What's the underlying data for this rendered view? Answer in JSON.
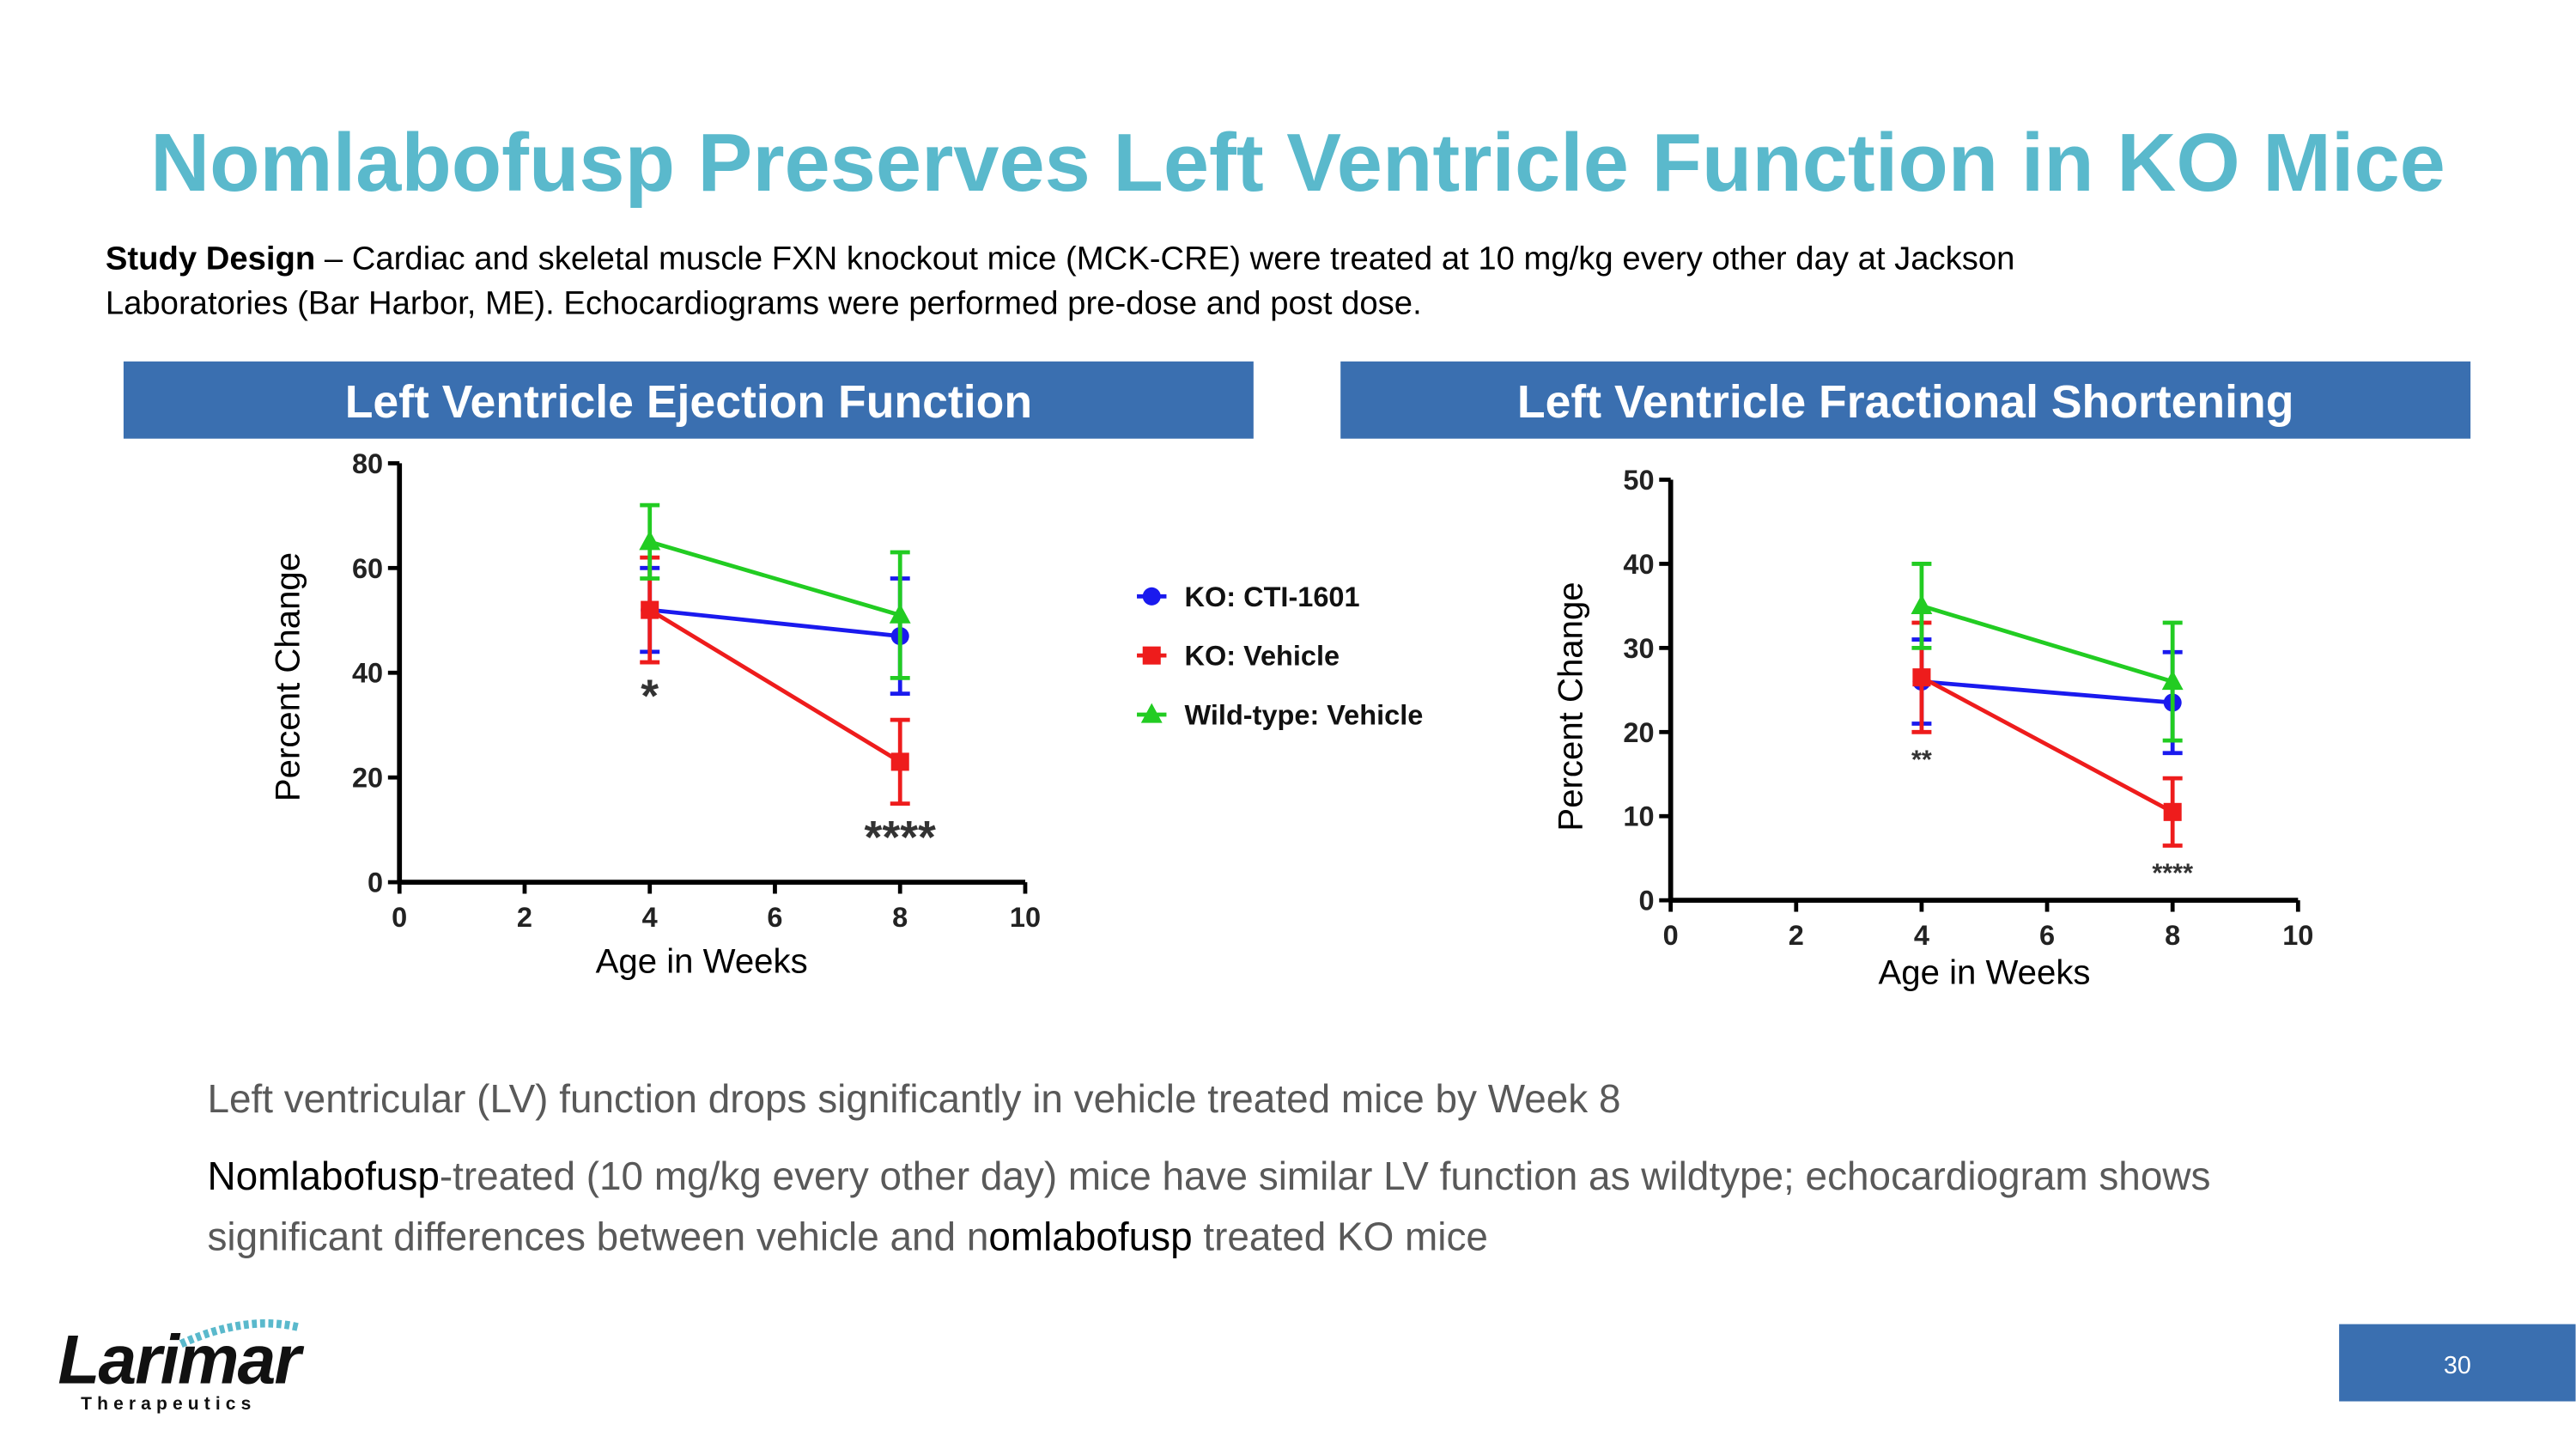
{
  "header": {
    "title": "Nomlabofusp Preserves Left Ventricle Function in KO Mice"
  },
  "study_design": {
    "label": "Study Design",
    "lines": [
      " – Cardiac and skeletal muscle FXN knockout mice (MCK-CRE) were treated at 10 mg/kg every other day at Jackson",
      "Laboratories (Bar Harbor, ME). Echocardiograms were performed pre-dose and post dose."
    ]
  },
  "chart_data": [
    {
      "type": "line",
      "title": "Left Ventricle Ejection Function",
      "xlabel": "Age in Weeks",
      "ylabel": "Percent Change",
      "x": [
        4,
        8
      ],
      "xlim": [
        0,
        10
      ],
      "xticks": [
        0,
        2,
        4,
        6,
        8,
        10
      ],
      "ylim": [
        0,
        80
      ],
      "yticks": [
        0,
        20,
        40,
        60,
        80
      ],
      "series": [
        {
          "name": "KO: CTI-1601",
          "color": "#1a1aee",
          "marker": "circle",
          "values": [
            52,
            47
          ],
          "errors": [
            8,
            11
          ]
        },
        {
          "name": "KO: Vehicle",
          "color": "#ee1c1c",
          "marker": "square",
          "values": [
            52,
            23
          ],
          "errors": [
            10,
            8
          ]
        },
        {
          "name": "Wild-type: Vehicle",
          "color": "#22cc22",
          "marker": "triangle",
          "values": [
            65,
            51
          ],
          "errors": [
            7,
            12
          ]
        }
      ],
      "annotations": [
        {
          "text": "*",
          "x": 4
        },
        {
          "text": "****",
          "x": 8
        }
      ]
    },
    {
      "type": "line",
      "title": "Left Ventricle Fractional Shortening",
      "xlabel": "Age in Weeks",
      "ylabel": "Percent Change",
      "x": [
        4,
        8
      ],
      "xlim": [
        0,
        10
      ],
      "xticks": [
        0,
        2,
        4,
        6,
        8,
        10
      ],
      "ylim": [
        0,
        50
      ],
      "yticks": [
        0,
        10,
        20,
        30,
        40,
        50
      ],
      "series": [
        {
          "color": "#1a1aee",
          "marker": "circle",
          "values": [
            26,
            23.5
          ],
          "errors": [
            5,
            6
          ]
        },
        {
          "color": "#ee1c1c",
          "marker": "square",
          "values": [
            26.5,
            10.5
          ],
          "errors": [
            6.5,
            4
          ]
        },
        {
          "color": "#22cc22",
          "marker": "triangle",
          "values": [
            35,
            26
          ],
          "errors": [
            5,
            7
          ]
        }
      ],
      "annotations": [
        {
          "text": "**",
          "x": 4
        },
        {
          "text": "****",
          "x": 8
        }
      ]
    }
  ],
  "bullets": [
    {
      "lines": [
        [
          {
            "text": "Left ventricular (LV) function drops significantly in vehicle treated mice by Week 8",
            "color": "#595959"
          }
        ]
      ]
    },
    {
      "lines": [
        [
          {
            "text": "Nomlabofusp",
            "color": "#000000"
          },
          {
            "text": "-treated (10 mg/kg every other day) mice have similar LV function as wildtype; echocardiogram shows",
            "color": "#595959"
          }
        ],
        [
          {
            "text": "significant differences between vehicle and n",
            "color": "#595959"
          },
          {
            "text": "omlabofusp",
            "color": "#000000"
          },
          {
            "text": " treated KO mice",
            "color": "#595959"
          }
        ]
      ]
    }
  ],
  "footer": {
    "logo": "Larimar",
    "logo_sub": "Therapeutics",
    "page": "30"
  }
}
